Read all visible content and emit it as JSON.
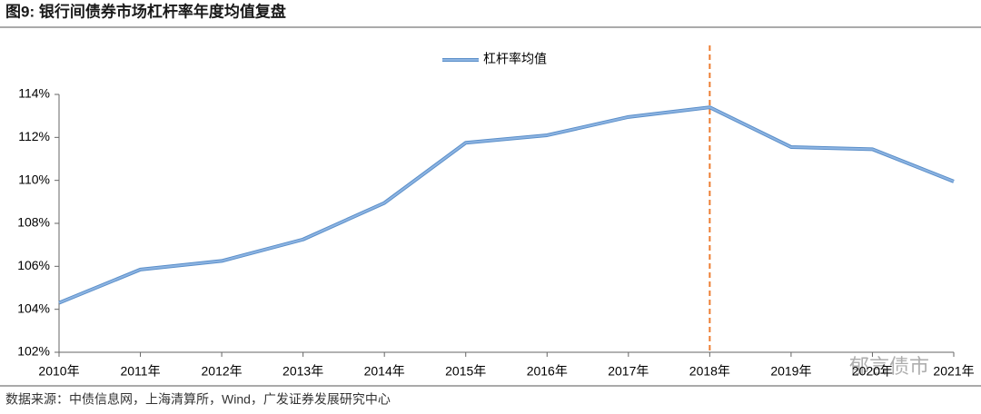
{
  "chart_data": {
    "type": "line",
    "title": "图9: 银行间债券市场杠杆率年度均值复盘",
    "categories": [
      "2010年",
      "2011年",
      "2012年",
      "2013年",
      "2014年",
      "2015年",
      "2016年",
      "2017年",
      "2018年",
      "2019年",
      "2020年",
      "2021年"
    ],
    "series": [
      {
        "name": "杠杆率均值",
        "color": "#8db4e2",
        "values": [
          104.3,
          105.85,
          106.25,
          107.25,
          108.95,
          111.75,
          112.1,
          112.95,
          113.4,
          111.55,
          111.45,
          109.95
        ]
      }
    ],
    "ylim": [
      102,
      114
    ],
    "yticks": [
      {
        "value": 102,
        "label": "102%"
      },
      {
        "value": 104,
        "label": "104%"
      },
      {
        "value": 106,
        "label": "106%"
      },
      {
        "value": 108,
        "label": "108%"
      },
      {
        "value": 110,
        "label": "110%"
      },
      {
        "value": 112,
        "label": "112%"
      },
      {
        "value": 114,
        "label": "114%"
      }
    ],
    "vline": {
      "x": "2018年",
      "color": "#ed7d31"
    },
    "legend": "top",
    "grid": false,
    "source": "数据来源：中债信息网，上海清算所，Wind，广发证券发展研究中心",
    "watermark": "郁言债市"
  }
}
